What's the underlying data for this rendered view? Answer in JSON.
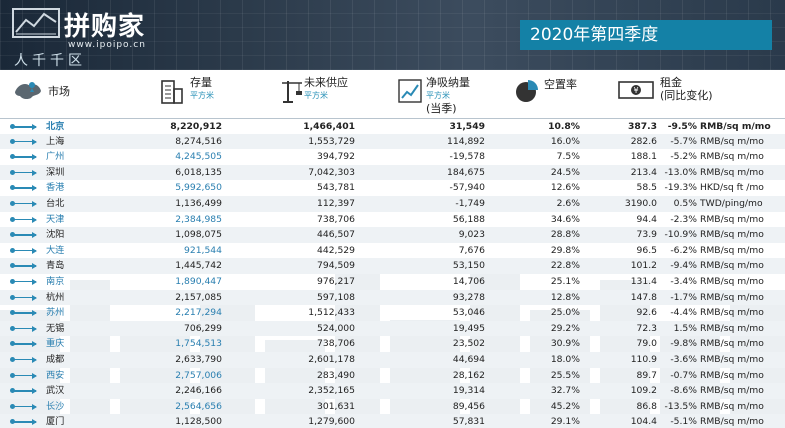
{
  "brand": {
    "name": "拼购家",
    "url": "www.ipoipo.cn",
    "tagline": "人千千区"
  },
  "quarter_title": "2020年第四季度",
  "headers": {
    "city": "市场",
    "stock": "存量",
    "stock_unit": "平方米",
    "supply": "未来供应",
    "supply_unit": "平方米",
    "absorb": "净吸纳量",
    "absorb_unit": "平方米",
    "absorb_note": "(当季)",
    "vacancy": "空置率",
    "rent": "租金",
    "rent_note": "(同比变化)"
  },
  "icons": [
    "map-icon",
    "building-icon",
    "crane-icon",
    "chart-icon",
    "pie-icon",
    "money-icon"
  ],
  "colors": {
    "accent": "#1481a6",
    "banner": "#2b3a4a",
    "row_alt": "#eef2f5"
  },
  "rows": [
    {
      "city": "北京",
      "stock": "8,220,912",
      "supply": "1,466,401",
      "absorb": "31,549",
      "vacancy": "10.8%",
      "rent": "387.3",
      "change": "-9.5%",
      "unit": "RMB/sq m/mo"
    },
    {
      "city": "上海",
      "stock": "8,274,516",
      "supply": "1,553,729",
      "absorb": "114,892",
      "vacancy": "16.0%",
      "rent": "282.6",
      "change": "-5.7%",
      "unit": "RMB/sq m/mo"
    },
    {
      "city": "广州",
      "stock": "4,245,505",
      "supply": "394,792",
      "absorb": "-19,578",
      "vacancy": "7.5%",
      "rent": "188.1",
      "change": "-5.2%",
      "unit": "RMB/sq m/mo"
    },
    {
      "city": "深圳",
      "stock": "6,018,135",
      "supply": "7,042,303",
      "absorb": "184,675",
      "vacancy": "24.5%",
      "rent": "213.4",
      "change": "-13.0%",
      "unit": "RMB/sq m/mo"
    },
    {
      "city": "香港",
      "stock": "5,992,650",
      "supply": "543,781",
      "absorb": "-57,940",
      "vacancy": "12.6%",
      "rent": "58.5",
      "change": "-19.3%",
      "unit": "HKD/sq ft /mo"
    },
    {
      "city": "台北",
      "stock": "1,136,499",
      "supply": "112,397",
      "absorb": "-1,749",
      "vacancy": "2.6%",
      "rent": "3190.0",
      "change": "0.5%",
      "unit": "TWD/ping/mo"
    },
    {
      "city": "天津",
      "stock": "2,384,985",
      "supply": "738,706",
      "absorb": "56,188",
      "vacancy": "34.6%",
      "rent": "94.4",
      "change": "-2.3%",
      "unit": "RMB/sq m/mo"
    },
    {
      "city": "沈阳",
      "stock": "1,098,075",
      "supply": "446,507",
      "absorb": "9,023",
      "vacancy": "28.8%",
      "rent": "73.9",
      "change": "-10.9%",
      "unit": "RMB/sq m/mo"
    },
    {
      "city": "大连",
      "stock": "921,544",
      "supply": "442,529",
      "absorb": "7,676",
      "vacancy": "29.8%",
      "rent": "96.5",
      "change": "-6.2%",
      "unit": "RMB/sq m/mo"
    },
    {
      "city": "青岛",
      "stock": "1,445,742",
      "supply": "794,509",
      "absorb": "53,150",
      "vacancy": "22.8%",
      "rent": "101.2",
      "change": "-9.4%",
      "unit": "RMB/sq m/mo"
    },
    {
      "city": "南京",
      "stock": "1,890,447",
      "supply": "976,217",
      "absorb": "14,706",
      "vacancy": "25.1%",
      "rent": "131.4",
      "change": "-3.4%",
      "unit": "RMB/sq m/mo"
    },
    {
      "city": "杭州",
      "stock": "2,157,085",
      "supply": "597,108",
      "absorb": "93,278",
      "vacancy": "12.8%",
      "rent": "147.8",
      "change": "-1.7%",
      "unit": "RMB/sq m/mo"
    },
    {
      "city": "苏州",
      "stock": "2,217,294",
      "supply": "1,512,433",
      "absorb": "53,046",
      "vacancy": "25.0%",
      "rent": "92.6",
      "change": "-4.4%",
      "unit": "RMB/sq m/mo"
    },
    {
      "city": "无锡",
      "stock": "706,299",
      "supply": "524,000",
      "absorb": "19,495",
      "vacancy": "29.2%",
      "rent": "72.3",
      "change": "1.5%",
      "unit": "RMB/sq m/mo"
    },
    {
      "city": "重庆",
      "stock": "1,754,513",
      "supply": "738,706",
      "absorb": "23,502",
      "vacancy": "30.9%",
      "rent": "79.0",
      "change": "-9.8%",
      "unit": "RMB/sq m/mo"
    },
    {
      "city": "成都",
      "stock": "2,633,790",
      "supply": "2,601,178",
      "absorb": "44,694",
      "vacancy": "18.0%",
      "rent": "110.9",
      "change": "-3.6%",
      "unit": "RMB/sq m/mo"
    },
    {
      "city": "西安",
      "stock": "2,757,006",
      "supply": "283,490",
      "absorb": "28,162",
      "vacancy": "25.5%",
      "rent": "89.7",
      "change": "-0.7%",
      "unit": "RMB/sq m/mo"
    },
    {
      "city": "武汉",
      "stock": "2,246,166",
      "supply": "2,352,165",
      "absorb": "19,314",
      "vacancy": "32.7%",
      "rent": "109.2",
      "change": "-8.6%",
      "unit": "RMB/sq m/mo"
    },
    {
      "city": "长沙",
      "stock": "2,564,656",
      "supply": "301,631",
      "absorb": "89,456",
      "vacancy": "45.2%",
      "rent": "86.8",
      "change": "-13.5%",
      "unit": "RMB/sq m/mo"
    },
    {
      "city": "厦门",
      "stock": "1,128,500",
      "supply": "1,279,600",
      "absorb": "57,831",
      "vacancy": "29.1%",
      "rent": "104.4",
      "change": "-5.1%",
      "unit": "RMB/sq m/mo"
    }
  ]
}
